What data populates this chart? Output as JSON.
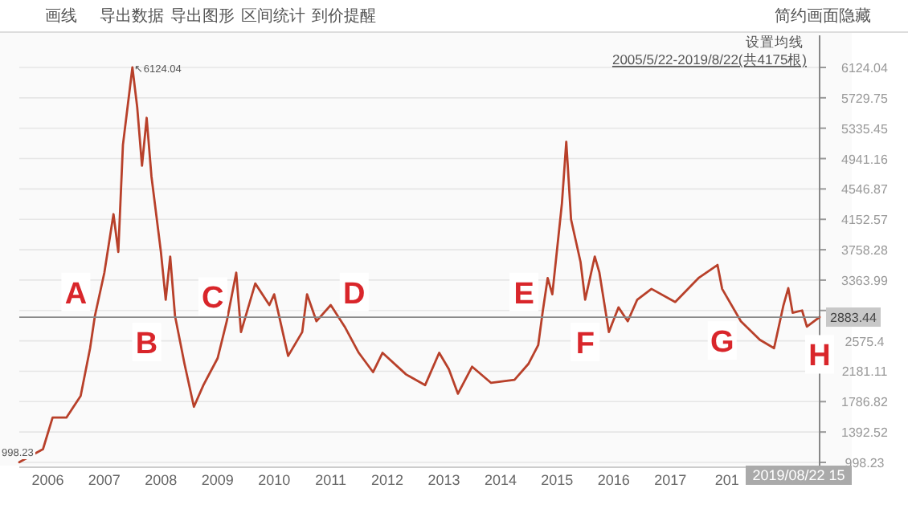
{
  "chart_data": {
    "type": "line",
    "series": [
      {
        "color": "#b8402a",
        "x": [
          "2005-07",
          "2005-12",
          "2006-02",
          "2006-05",
          "2006-08",
          "2006-10",
          "2006-11",
          "2007-01",
          "2007-03",
          "2007-04",
          "2007-05",
          "2007-07",
          "2007-08",
          "2007-09",
          "2007-10",
          "2007-11",
          "2008-01",
          "2008-02",
          "2008-03",
          "2008-04",
          "2008-06",
          "2008-08",
          "2008-10",
          "2009-01",
          "2009-03",
          "2009-05",
          "2009-06",
          "2009-09",
          "2009-12",
          "2010-01",
          "2010-04",
          "2010-07",
          "2010-08",
          "2010-10",
          "2011-01",
          "2011-04",
          "2011-07",
          "2011-10",
          "2011-12",
          "2012-05",
          "2012-09",
          "2012-12",
          "2013-02",
          "2013-04",
          "2013-07",
          "2013-11",
          "2014-04",
          "2014-07",
          "2014-09",
          "2014-10",
          "2014-11",
          "2014-12",
          "2015-02",
          "2015-03",
          "2015-04",
          "2015-06",
          "2015-07",
          "2015-09",
          "2015-10",
          "2015-12",
          "2016-02",
          "2016-04",
          "2016-06",
          "2016-09",
          "2017-02",
          "2017-07",
          "2017-11",
          "2017-12",
          "2018-04",
          "2018-08",
          "2018-11",
          "2019-01",
          "2019-02",
          "2019-03",
          "2019-05",
          "2019-06",
          "2019-08-22"
        ],
        "values": [
          1000,
          1170,
          1580,
          1580,
          1860,
          2480,
          2900,
          3460,
          4220,
          3730,
          5120,
          6124.04,
          5610,
          4850,
          5470,
          4710,
          3730,
          3110,
          3670,
          2900,
          2280,
          1720,
          2000,
          2350,
          2830,
          3460,
          2690,
          3320,
          3040,
          3180,
          2380,
          2690,
          3180,
          2830,
          3040,
          2760,
          2420,
          2170,
          2420,
          2140,
          2000,
          2420,
          2210,
          1890,
          2240,
          2030,
          2070,
          2280,
          2520,
          2970,
          3390,
          3180,
          4360,
          5160,
          4150,
          3600,
          3110,
          3670,
          3460,
          2690,
          3010,
          2830,
          3110,
          3250,
          3080,
          3390,
          3560,
          3250,
          2830,
          2590,
          2480,
          3040,
          3260,
          2940,
          2970,
          2760,
          2883.44
        ]
      }
    ],
    "xlim": [
      "2005-07",
      "2019-08-22"
    ],
    "xticks": [
      "2006",
      "2007",
      "2008",
      "2009",
      "2010",
      "2011",
      "2012",
      "2013",
      "2014",
      "2015",
      "2016",
      "2017",
      {
        "value": "2018",
        "label": "201"
      }
    ],
    "ylim": [
      998.23,
      6124.04
    ],
    "yticks": [
      998.23,
      1392.52,
      1786.82,
      2181.11,
      2575.4,
      {
        "value": 2969.7,
        "label": null
      },
      3363.99,
      3758.28,
      4152.57,
      4546.87,
      4941.16,
      5335.45,
      5729.75,
      6124.04
    ],
    "grid": "y",
    "ref_lines": [
      {
        "axis": "y",
        "value": 2883.44,
        "label": "2883.44",
        "color": "#888888"
      }
    ],
    "annotations": [
      "画线",
      "导出数据",
      "导出图形",
      "区间统计",
      "到价提醒",
      "简约画面",
      "隐藏",
      "设置均线",
      "2005/5/22-2019/8/22(共4175根)",
      "2019/08/22 15",
      {
        "text": "↖6124.04",
        "x": "2007-07",
        "y": 6124.04
      },
      {
        "text": "998.23",
        "x": "2005-07",
        "y": 998.23
      },
      {
        "text": "A",
        "x": "2006-07",
        "y": 3210
      },
      {
        "text": "B",
        "x": "2007-10",
        "y": 2560
      },
      {
        "text": "C",
        "x": "2008-12",
        "y": 3150
      },
      {
        "text": "D",
        "x": "2011-06",
        "y": 3210
      },
      {
        "text": "E",
        "x": "2014-06",
        "y": 3210
      },
      {
        "text": "F",
        "x": "2015-07",
        "y": 2560
      },
      {
        "text": "G",
        "x": "2017-12",
        "y": 2580
      },
      {
        "text": "H",
        "x": "2019-08-22",
        "y": 2400
      }
    ]
  }
}
